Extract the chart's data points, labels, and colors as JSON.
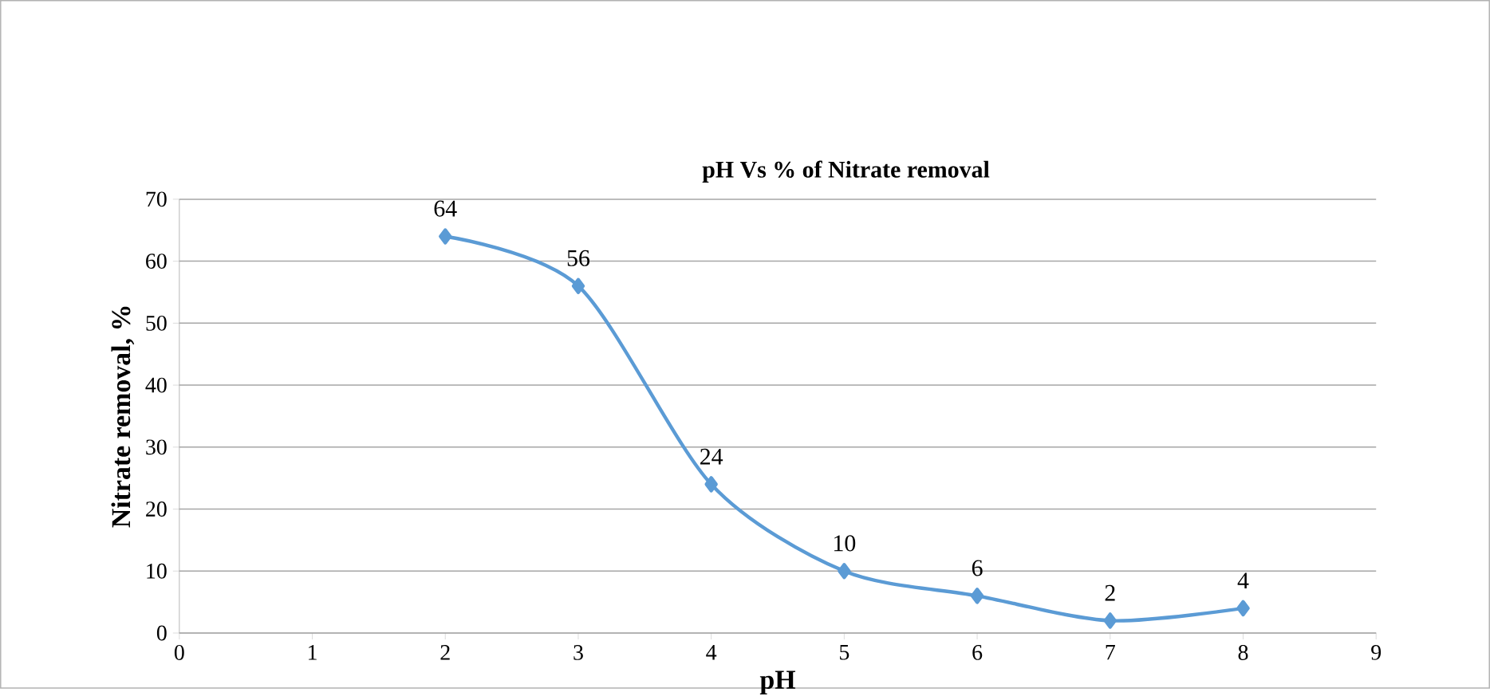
{
  "chart_data": {
    "type": "line",
    "title": "pH Vs % of Nitrate removal",
    "xlabel": "pH",
    "ylabel": "Nitrate removal, %",
    "x": [
      2,
      3,
      4,
      5,
      6,
      7,
      8
    ],
    "series": [
      {
        "color": "#5b9bd5",
        "values": [
          64,
          56,
          24,
          10,
          6,
          2,
          4
        ]
      }
    ],
    "xlim": [
      0,
      9
    ],
    "xticks": [
      0,
      1,
      2,
      3,
      4,
      5,
      6,
      7,
      8,
      9
    ],
    "ylim": [
      0,
      70
    ],
    "yticks": [
      0,
      10,
      20,
      30,
      40,
      50,
      60,
      70
    ],
    "grid": "y",
    "marker": "diamond",
    "line_style": "solid",
    "data_labels": true
  }
}
